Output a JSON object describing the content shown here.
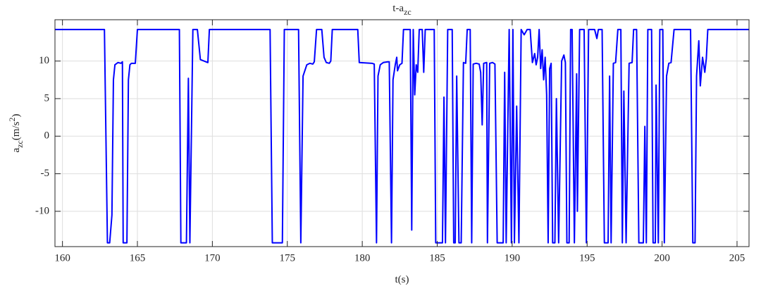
{
  "chart_data": {
    "type": "line",
    "title": [
      {
        "text": "t-a"
      },
      {
        "text": "zc",
        "shift": "sub"
      }
    ],
    "xlabel": [
      {
        "text": "t(s)"
      }
    ],
    "ylabel": [
      {
        "text": "a"
      },
      {
        "text": "zc",
        "shift": "sub"
      },
      {
        "text": "(m/s"
      },
      {
        "text": "2",
        "shift": "super"
      },
      {
        "text": ")"
      }
    ],
    "xlim": [
      159.5,
      205.8
    ],
    "ylim": [
      -14.7,
      15.5
    ],
    "xticks": [
      160,
      165,
      170,
      175,
      180,
      185,
      190,
      195,
      200,
      205
    ],
    "yticks": [
      -10,
      -5,
      0,
      5,
      10
    ],
    "grid": true,
    "series": [
      {
        "color": "#0000ff",
        "x": [
          159.5,
          162.8,
          163.0,
          163.15,
          163.3,
          163.4,
          163.5,
          163.7,
          163.9,
          164.0,
          164.05,
          164.3,
          164.4,
          164.5,
          164.6,
          164.86,
          165.0,
          167.8,
          167.9,
          168.27,
          168.4,
          168.5,
          168.7,
          169.0,
          169.2,
          169.7,
          169.8,
          173.85,
          174.0,
          174.67,
          174.8,
          175.75,
          175.9,
          176.05,
          176.3,
          176.5,
          176.7,
          176.8,
          176.95,
          177.3,
          177.45,
          177.6,
          177.8,
          177.9,
          178.0,
          179.7,
          179.8,
          180.65,
          180.8,
          180.95,
          181.05,
          181.2,
          181.4,
          181.7,
          181.8,
          181.95,
          182.05,
          182.2,
          182.3,
          182.35,
          182.5,
          182.65,
          182.75,
          183.2,
          183.3,
          183.4,
          183.5,
          183.6,
          183.7,
          183.8,
          184.0,
          184.1,
          184.2,
          184.8,
          184.9,
          185.35,
          185.45,
          185.55,
          185.7,
          186.0,
          186.1,
          186.2,
          186.3,
          186.45,
          186.6,
          186.75,
          186.9,
          187.0,
          187.2,
          187.3,
          187.4,
          187.6,
          187.8,
          187.9,
          188.0,
          188.1,
          188.3,
          188.35,
          188.5,
          188.7,
          188.85,
          189.0,
          189.4,
          189.5,
          189.6,
          189.8,
          189.95,
          190.05,
          190.15,
          190.3,
          190.45,
          190.6,
          190.8,
          191.0,
          191.2,
          191.35,
          191.5,
          191.6,
          191.7,
          191.8,
          191.9,
          192.0,
          192.1,
          192.2,
          192.3,
          192.4,
          192.5,
          192.6,
          192.7,
          192.85,
          192.95,
          193.1,
          193.3,
          193.45,
          193.55,
          193.65,
          193.8,
          193.9,
          194.0,
          194.15,
          194.3,
          194.35,
          194.5,
          194.8,
          194.95,
          195.1,
          195.5,
          195.65,
          195.75,
          196.0,
          196.15,
          196.4,
          196.5,
          196.6,
          196.75,
          196.9,
          197.05,
          197.25,
          197.35,
          197.45,
          197.6,
          197.8,
          198.0,
          198.1,
          198.3,
          198.45,
          198.75,
          198.85,
          198.95,
          199.05,
          199.3,
          199.4,
          199.55,
          199.6,
          199.75,
          199.85,
          200.05,
          200.15,
          200.3,
          200.45,
          200.6,
          200.8,
          201.9,
          202.05,
          202.2,
          202.3,
          202.45,
          202.55,
          202.7,
          202.85,
          202.95,
          203.05,
          205.8
        ],
        "values": [
          14.2,
          14.2,
          -14.2,
          -14.2,
          -10.5,
          7.5,
          9.5,
          9.8,
          9.7,
          9.9,
          -14.2,
          -14.2,
          7.5,
          9.5,
          9.7,
          9.7,
          14.2,
          14.2,
          -14.2,
          -14.2,
          7.7,
          -14.2,
          14.2,
          14.2,
          10.2,
          9.8,
          14.2,
          14.2,
          -14.2,
          -14.2,
          14.2,
          14.2,
          -14.2,
          8,
          9.5,
          9.7,
          9.6,
          9.9,
          14.2,
          14.2,
          10.5,
          9.8,
          9.7,
          10,
          14.2,
          14.2,
          9.8,
          9.7,
          9.6,
          -14.2,
          8,
          9.5,
          9.8,
          9.9,
          9.9,
          -14.2,
          7.5,
          9.5,
          10.5,
          8.7,
          9.5,
          9.7,
          14.2,
          14.2,
          -12.5,
          14.2,
          5.5,
          9.5,
          8.5,
          14.2,
          14.2,
          8.5,
          14.2,
          14.2,
          -14.2,
          -14.2,
          5.2,
          -14.2,
          14.2,
          14.2,
          -14.2,
          -14.2,
          8,
          -14.2,
          -14.2,
          9.8,
          9.7,
          14.2,
          14.2,
          -14.2,
          9.6,
          9.7,
          9.6,
          8.5,
          1.5,
          9.7,
          9.8,
          -14.2,
          9.7,
          9.8,
          9.6,
          -14.2,
          -14.2,
          8.5,
          -14.2,
          14.2,
          -14.2,
          14.2,
          -14.2,
          4,
          -14.2,
          14.2,
          13.5,
          14.2,
          14.2,
          9.8,
          11,
          9.5,
          10.5,
          14.2,
          9,
          11.5,
          7.5,
          10.5,
          5.5,
          -14.2,
          9,
          9.7,
          -14.2,
          -14.2,
          5,
          -14.2,
          10,
          10.8,
          9.8,
          -14.2,
          -14.2,
          14.2,
          14.2,
          -14.2,
          8.3,
          -10,
          14.2,
          14.2,
          -14.2,
          14.2,
          14.2,
          13,
          14.2,
          14.2,
          -14.2,
          -14.2,
          8,
          -14.2,
          9.7,
          9.8,
          14.2,
          14.2,
          -14.2,
          6,
          -14.2,
          9.7,
          9.8,
          14.2,
          14.2,
          -14.2,
          -14.2,
          1.3,
          -14.2,
          14.2,
          14.2,
          -14.2,
          -14.2,
          6.8,
          -14.2,
          14.2,
          14.2,
          -14.2,
          8,
          9.7,
          9.8,
          14.2,
          14.2,
          -14.2,
          -14.2,
          8,
          12.7,
          6.7,
          10.5,
          8.5,
          10.3,
          14.2,
          14.2
        ]
      }
    ]
  }
}
